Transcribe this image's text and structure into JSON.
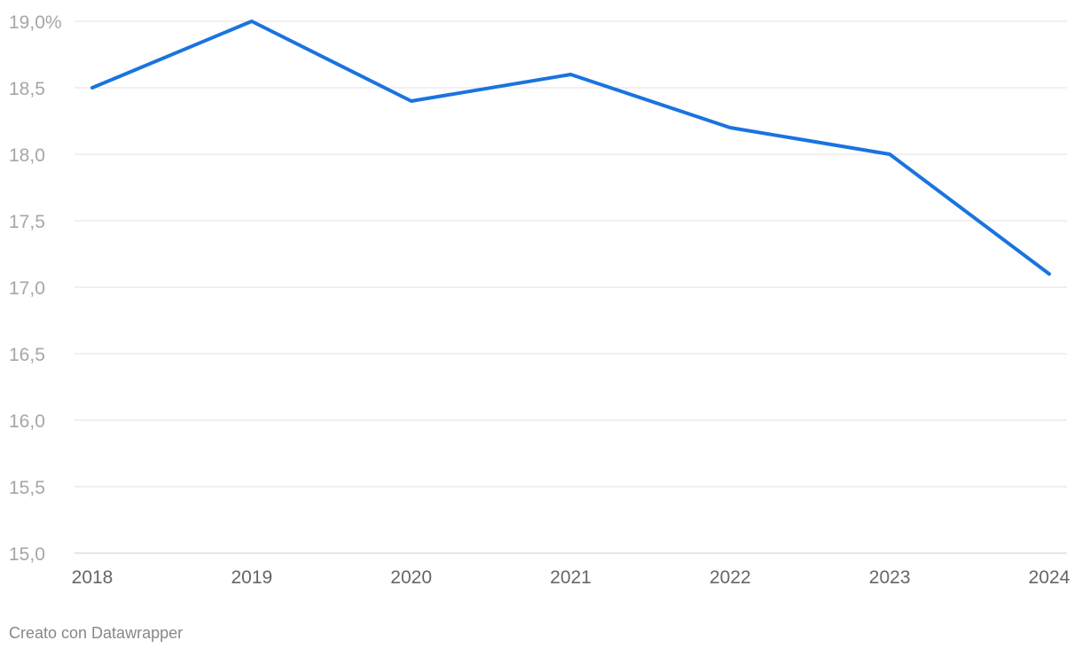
{
  "chart_data": {
    "type": "line",
    "x": [
      "2018",
      "2019",
      "2020",
      "2021",
      "2022",
      "2023",
      "2024"
    ],
    "series": [
      {
        "values": [
          18.5,
          19.0,
          18.4,
          18.6,
          18.2,
          18.0,
          17.1
        ],
        "color": "#1a73e0"
      }
    ],
    "y_ticks": [
      "15,0",
      "15,5",
      "16,0",
      "16,5",
      "17,0",
      "17,5",
      "18,0",
      "18,5",
      "19,0%"
    ],
    "ylim": [
      15.0,
      19.0
    ],
    "grid": true,
    "title": "",
    "xlabel": "",
    "ylabel": ""
  },
  "footer": {
    "credit": "Creato con Datawrapper"
  }
}
